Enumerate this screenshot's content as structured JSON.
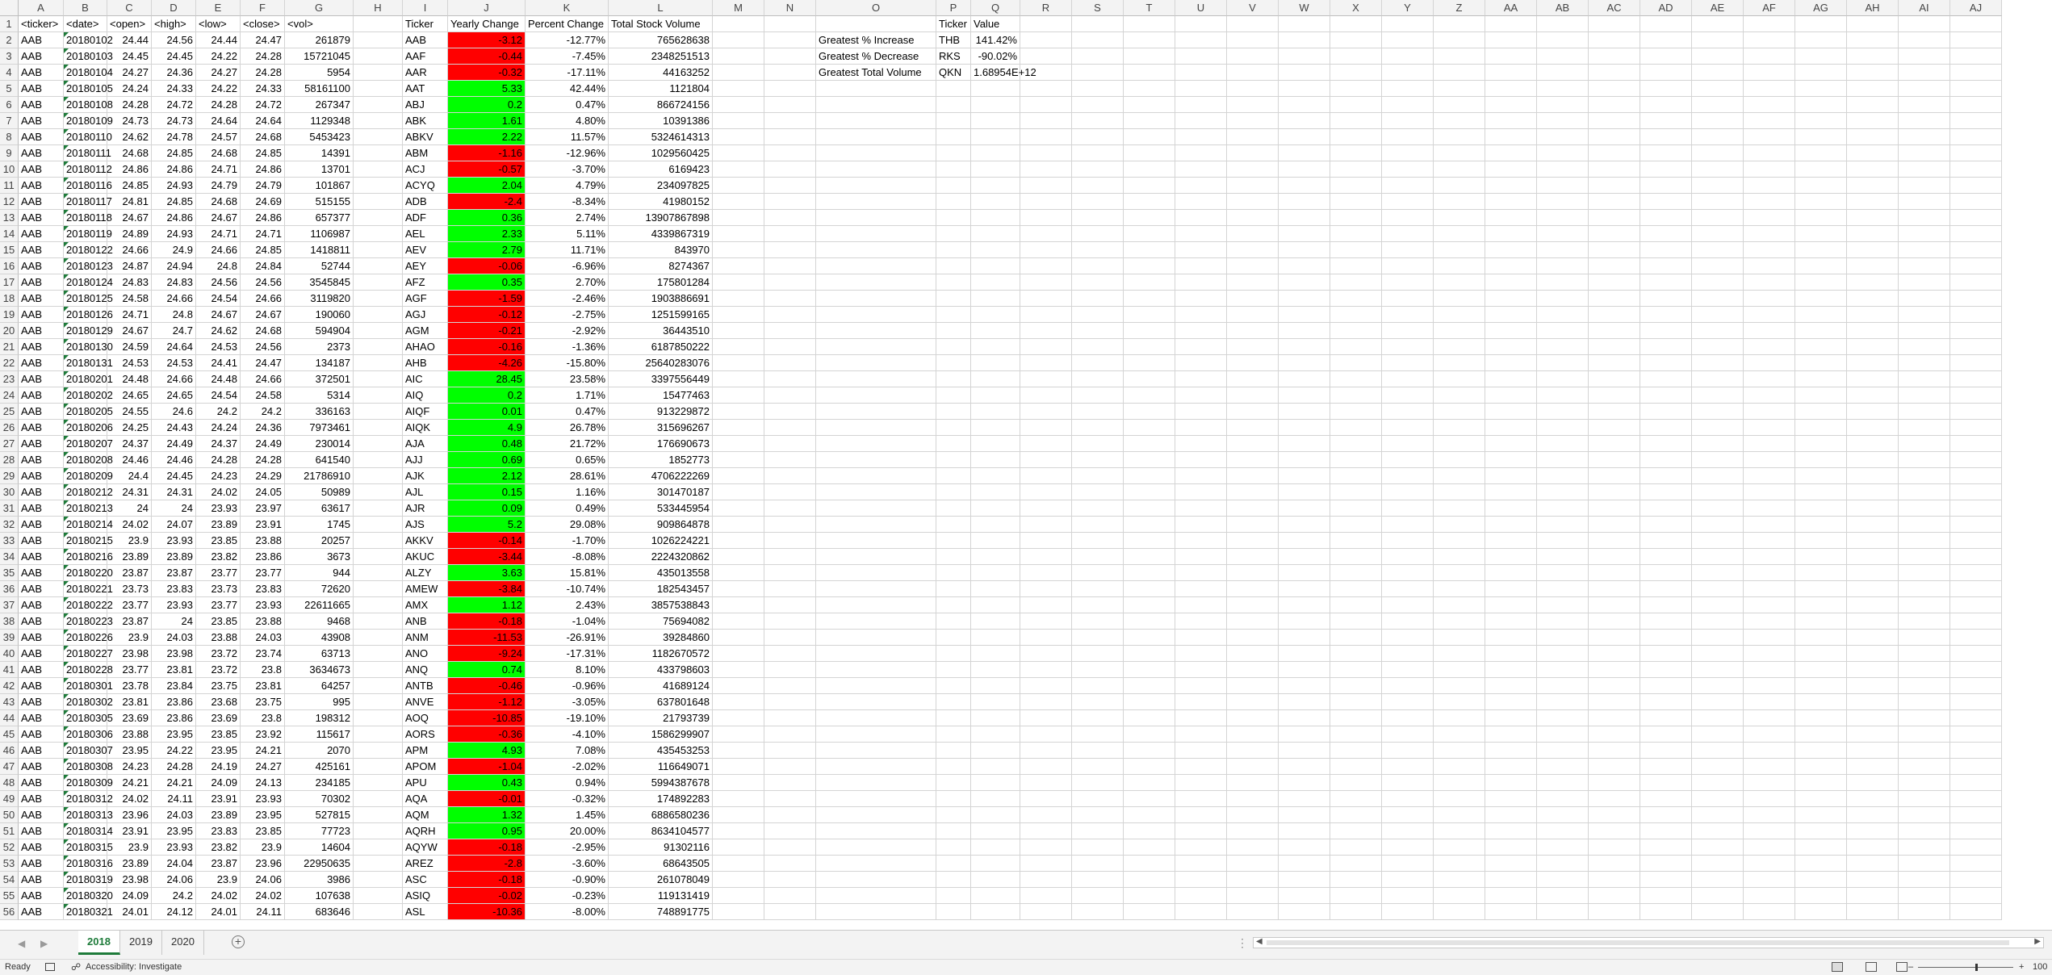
{
  "columns": [
    "A",
    "B",
    "C",
    "D",
    "E",
    "F",
    "G",
    "H",
    "I",
    "J",
    "K",
    "L",
    "M",
    "N",
    "O",
    "P",
    "Q",
    "R",
    "S",
    "T",
    "U",
    "V",
    "W",
    "X",
    "Y",
    "Z",
    "AA",
    "AB",
    "AC",
    "AD",
    "AE",
    "AF",
    "AG",
    "AH",
    "AI",
    "AJ"
  ],
  "headers": {
    "A": "<ticker>",
    "B": "<date>",
    "C": "<open>",
    "D": "<high>",
    "E": "<low>",
    "F": "<close>",
    "G": "<vol>",
    "I": "Ticker",
    "J": "Yearly Change",
    "K": "Percent Change",
    "L": "Total Stock Volume",
    "P": "Ticker",
    "Q": "Value"
  },
  "raw_rows": [
    [
      "AAB",
      "20180102",
      "24.44",
      "24.56",
      "24.44",
      "24.47",
      "261879"
    ],
    [
      "AAB",
      "20180103",
      "24.45",
      "24.45",
      "24.22",
      "24.28",
      "15721045"
    ],
    [
      "AAB",
      "20180104",
      "24.27",
      "24.36",
      "24.27",
      "24.28",
      "5954"
    ],
    [
      "AAB",
      "20180105",
      "24.24",
      "24.33",
      "24.22",
      "24.33",
      "58161100"
    ],
    [
      "AAB",
      "20180108",
      "24.28",
      "24.72",
      "24.28",
      "24.72",
      "267347"
    ],
    [
      "AAB",
      "20180109",
      "24.73",
      "24.73",
      "24.64",
      "24.64",
      "1129348"
    ],
    [
      "AAB",
      "20180110",
      "24.62",
      "24.78",
      "24.57",
      "24.68",
      "5453423"
    ],
    [
      "AAB",
      "20180111",
      "24.68",
      "24.85",
      "24.68",
      "24.85",
      "14391"
    ],
    [
      "AAB",
      "20180112",
      "24.86",
      "24.86",
      "24.71",
      "24.86",
      "13701"
    ],
    [
      "AAB",
      "20180116",
      "24.85",
      "24.93",
      "24.79",
      "24.79",
      "101867"
    ],
    [
      "AAB",
      "20180117",
      "24.81",
      "24.85",
      "24.68",
      "24.69",
      "515155"
    ],
    [
      "AAB",
      "20180118",
      "24.67",
      "24.86",
      "24.67",
      "24.86",
      "657377"
    ],
    [
      "AAB",
      "20180119",
      "24.89",
      "24.93",
      "24.71",
      "24.71",
      "1106987"
    ],
    [
      "AAB",
      "20180122",
      "24.66",
      "24.9",
      "24.66",
      "24.85",
      "1418811"
    ],
    [
      "AAB",
      "20180123",
      "24.87",
      "24.94",
      "24.8",
      "24.84",
      "52744"
    ],
    [
      "AAB",
      "20180124",
      "24.83",
      "24.83",
      "24.56",
      "24.56",
      "3545845"
    ],
    [
      "AAB",
      "20180125",
      "24.58",
      "24.66",
      "24.54",
      "24.66",
      "3119820"
    ],
    [
      "AAB",
      "20180126",
      "24.71",
      "24.8",
      "24.67",
      "24.67",
      "190060"
    ],
    [
      "AAB",
      "20180129",
      "24.67",
      "24.7",
      "24.62",
      "24.68",
      "594904"
    ],
    [
      "AAB",
      "20180130",
      "24.59",
      "24.64",
      "24.53",
      "24.56",
      "2373"
    ],
    [
      "AAB",
      "20180131",
      "24.53",
      "24.53",
      "24.41",
      "24.47",
      "134187"
    ],
    [
      "AAB",
      "20180201",
      "24.48",
      "24.66",
      "24.48",
      "24.66",
      "372501"
    ],
    [
      "AAB",
      "20180202",
      "24.65",
      "24.65",
      "24.54",
      "24.58",
      "5314"
    ],
    [
      "AAB",
      "20180205",
      "24.55",
      "24.6",
      "24.2",
      "24.2",
      "336163"
    ],
    [
      "AAB",
      "20180206",
      "24.25",
      "24.43",
      "24.24",
      "24.36",
      "7973461"
    ],
    [
      "AAB",
      "20180207",
      "24.37",
      "24.49",
      "24.37",
      "24.49",
      "230014"
    ],
    [
      "AAB",
      "20180208",
      "24.46",
      "24.46",
      "24.28",
      "24.28",
      "641540"
    ],
    [
      "AAB",
      "20180209",
      "24.4",
      "24.45",
      "24.23",
      "24.29",
      "21786910"
    ],
    [
      "AAB",
      "20180212",
      "24.31",
      "24.31",
      "24.02",
      "24.05",
      "50989"
    ],
    [
      "AAB",
      "20180213",
      "24",
      "24",
      "23.93",
      "23.97",
      "63617"
    ],
    [
      "AAB",
      "20180214",
      "24.02",
      "24.07",
      "23.89",
      "23.91",
      "1745"
    ],
    [
      "AAB",
      "20180215",
      "23.9",
      "23.93",
      "23.85",
      "23.88",
      "20257"
    ],
    [
      "AAB",
      "20180216",
      "23.89",
      "23.89",
      "23.82",
      "23.86",
      "3673"
    ],
    [
      "AAB",
      "20180220",
      "23.87",
      "23.87",
      "23.77",
      "23.77",
      "944"
    ],
    [
      "AAB",
      "20180221",
      "23.73",
      "23.83",
      "23.73",
      "23.83",
      "72620"
    ],
    [
      "AAB",
      "20180222",
      "23.77",
      "23.93",
      "23.77",
      "23.93",
      "22611665"
    ],
    [
      "AAB",
      "20180223",
      "23.87",
      "24",
      "23.85",
      "23.88",
      "9468"
    ],
    [
      "AAB",
      "20180226",
      "23.9",
      "24.03",
      "23.88",
      "24.03",
      "43908"
    ],
    [
      "AAB",
      "20180227",
      "23.98",
      "23.98",
      "23.72",
      "23.74",
      "63713"
    ],
    [
      "AAB",
      "20180228",
      "23.77",
      "23.81",
      "23.72",
      "23.8",
      "3634673"
    ],
    [
      "AAB",
      "20180301",
      "23.78",
      "23.84",
      "23.75",
      "23.81",
      "64257"
    ],
    [
      "AAB",
      "20180302",
      "23.81",
      "23.86",
      "23.68",
      "23.75",
      "995"
    ],
    [
      "AAB",
      "20180305",
      "23.69",
      "23.86",
      "23.69",
      "23.8",
      "198312"
    ],
    [
      "AAB",
      "20180306",
      "23.88",
      "23.95",
      "23.85",
      "23.92",
      "115617"
    ],
    [
      "AAB",
      "20180307",
      "23.95",
      "24.22",
      "23.95",
      "24.21",
      "2070"
    ],
    [
      "AAB",
      "20180308",
      "24.23",
      "24.28",
      "24.19",
      "24.27",
      "425161"
    ],
    [
      "AAB",
      "20180309",
      "24.21",
      "24.21",
      "24.09",
      "24.13",
      "234185"
    ],
    [
      "AAB",
      "20180312",
      "24.02",
      "24.11",
      "23.91",
      "23.93",
      "70302"
    ],
    [
      "AAB",
      "20180313",
      "23.96",
      "24.03",
      "23.89",
      "23.95",
      "527815"
    ],
    [
      "AAB",
      "20180314",
      "23.91",
      "23.95",
      "23.83",
      "23.85",
      "77723"
    ],
    [
      "AAB",
      "20180315",
      "23.9",
      "23.93",
      "23.82",
      "23.9",
      "14604"
    ],
    [
      "AAB",
      "20180316",
      "23.89",
      "24.04",
      "23.87",
      "23.96",
      "22950635"
    ],
    [
      "AAB",
      "20180319",
      "23.98",
      "24.06",
      "23.9",
      "24.06",
      "3986"
    ],
    [
      "AAB",
      "20180320",
      "24.09",
      "24.2",
      "24.02",
      "24.02",
      "107638"
    ],
    [
      "AAB",
      "20180321",
      "24.01",
      "24.12",
      "24.01",
      "24.11",
      "683646"
    ]
  ],
  "summary_rows": [
    [
      "AAB",
      "-3.12",
      "-12.77%",
      "765628638"
    ],
    [
      "AAF",
      "-0.44",
      "-7.45%",
      "2348251513"
    ],
    [
      "AAR",
      "-0.32",
      "-17.11%",
      "44163252"
    ],
    [
      "AAT",
      "5.33",
      "42.44%",
      "1121804"
    ],
    [
      "ABJ",
      "0.2",
      "0.47%",
      "866724156"
    ],
    [
      "ABK",
      "1.61",
      "4.80%",
      "10391386"
    ],
    [
      "ABKV",
      "2.22",
      "11.57%",
      "5324614313"
    ],
    [
      "ABM",
      "-1.16",
      "-12.96%",
      "1029560425"
    ],
    [
      "ACJ",
      "-0.57",
      "-3.70%",
      "6169423"
    ],
    [
      "ACYQ",
      "2.04",
      "4.79%",
      "234097825"
    ],
    [
      "ADB",
      "-2.4",
      "-8.34%",
      "41980152"
    ],
    [
      "ADF",
      "0.36",
      "2.74%",
      "13907867898"
    ],
    [
      "AEL",
      "2.33",
      "5.11%",
      "4339867319"
    ],
    [
      "AEV",
      "2.79",
      "11.71%",
      "843970"
    ],
    [
      "AEY",
      "-0.06",
      "-6.96%",
      "8274367"
    ],
    [
      "AFZ",
      "0.35",
      "2.70%",
      "175801284"
    ],
    [
      "AGF",
      "-1.59",
      "-2.46%",
      "1903886691"
    ],
    [
      "AGJ",
      "-0.12",
      "-2.75%",
      "1251599165"
    ],
    [
      "AGM",
      "-0.21",
      "-2.92%",
      "36443510"
    ],
    [
      "AHAO",
      "-0.16",
      "-1.36%",
      "6187850222"
    ],
    [
      "AHB",
      "-4.26",
      "-15.80%",
      "25640283076"
    ],
    [
      "AIC",
      "28.45",
      "23.58%",
      "3397556449"
    ],
    [
      "AIQ",
      "0.2",
      "1.71%",
      "15477463"
    ],
    [
      "AIQF",
      "0.01",
      "0.47%",
      "913229872"
    ],
    [
      "AIQK",
      "4.9",
      "26.78%",
      "315696267"
    ],
    [
      "AJA",
      "0.48",
      "21.72%",
      "176690673"
    ],
    [
      "AJJ",
      "0.69",
      "0.65%",
      "1852773"
    ],
    [
      "AJK",
      "2.12",
      "28.61%",
      "4706222269"
    ],
    [
      "AJL",
      "0.15",
      "1.16%",
      "301470187"
    ],
    [
      "AJR",
      "0.09",
      "0.49%",
      "533445954"
    ],
    [
      "AJS",
      "5.2",
      "29.08%",
      "909864878"
    ],
    [
      "AKKV",
      "-0.14",
      "-1.70%",
      "1026224221"
    ],
    [
      "AKUC",
      "-3.44",
      "-8.08%",
      "2224320862"
    ],
    [
      "ALZY",
      "3.63",
      "15.81%",
      "435013558"
    ],
    [
      "AMEW",
      "-3.84",
      "-10.74%",
      "182543457"
    ],
    [
      "AMX",
      "1.12",
      "2.43%",
      "3857538843"
    ],
    [
      "ANB",
      "-0.18",
      "-1.04%",
      "75694082"
    ],
    [
      "ANM",
      "-11.53",
      "-26.91%",
      "39284860"
    ],
    [
      "ANO",
      "-9.24",
      "-17.31%",
      "1182670572"
    ],
    [
      "ANQ",
      "0.74",
      "8.10%",
      "433798603"
    ],
    [
      "ANTB",
      "-0.46",
      "-0.96%",
      "41689124"
    ],
    [
      "ANVE",
      "-1.12",
      "-3.05%",
      "637801648"
    ],
    [
      "AOQ",
      "-10.85",
      "-19.10%",
      "21793739"
    ],
    [
      "AORS",
      "-0.36",
      "-4.10%",
      "1586299907"
    ],
    [
      "APM",
      "4.93",
      "7.08%",
      "435453253"
    ],
    [
      "APOM",
      "-1.04",
      "-2.02%",
      "116649071"
    ],
    [
      "APU",
      "0.43",
      "0.94%",
      "5994387678"
    ],
    [
      "AQA",
      "-0.01",
      "-0.32%",
      "174892283"
    ],
    [
      "AQM",
      "1.32",
      "1.45%",
      "6886580236"
    ],
    [
      "AQRH",
      "0.95",
      "20.00%",
      "8634104577"
    ],
    [
      "AQYW",
      "-0.18",
      "-2.95%",
      "91302116"
    ],
    [
      "AREZ",
      "-2.8",
      "-3.60%",
      "68643505"
    ],
    [
      "ASC",
      "-0.18",
      "-0.90%",
      "261078049"
    ],
    [
      "ASIQ",
      "-0.02",
      "-0.23%",
      "119131419"
    ],
    [
      "ASL",
      "-10.36",
      "-8.00%",
      "748891775"
    ]
  ],
  "greatest": [
    [
      "Greatest % Increase",
      "THB",
      "141.42%"
    ],
    [
      "Greatest % Decrease",
      "RKS",
      "-90.02%"
    ],
    [
      "Greatest Total Volume",
      "QKN",
      "1.68954E+12"
    ]
  ],
  "colors": {
    "positive": "#00ff00",
    "negative": "#ff0000",
    "accent": "#1e7b3a"
  },
  "sheet_tabs": [
    "2018",
    "2019",
    "2020"
  ],
  "active_tab": "2018",
  "status": {
    "ready": "Ready",
    "accessibility": "Accessibility: Investigate",
    "zoom": "100"
  }
}
